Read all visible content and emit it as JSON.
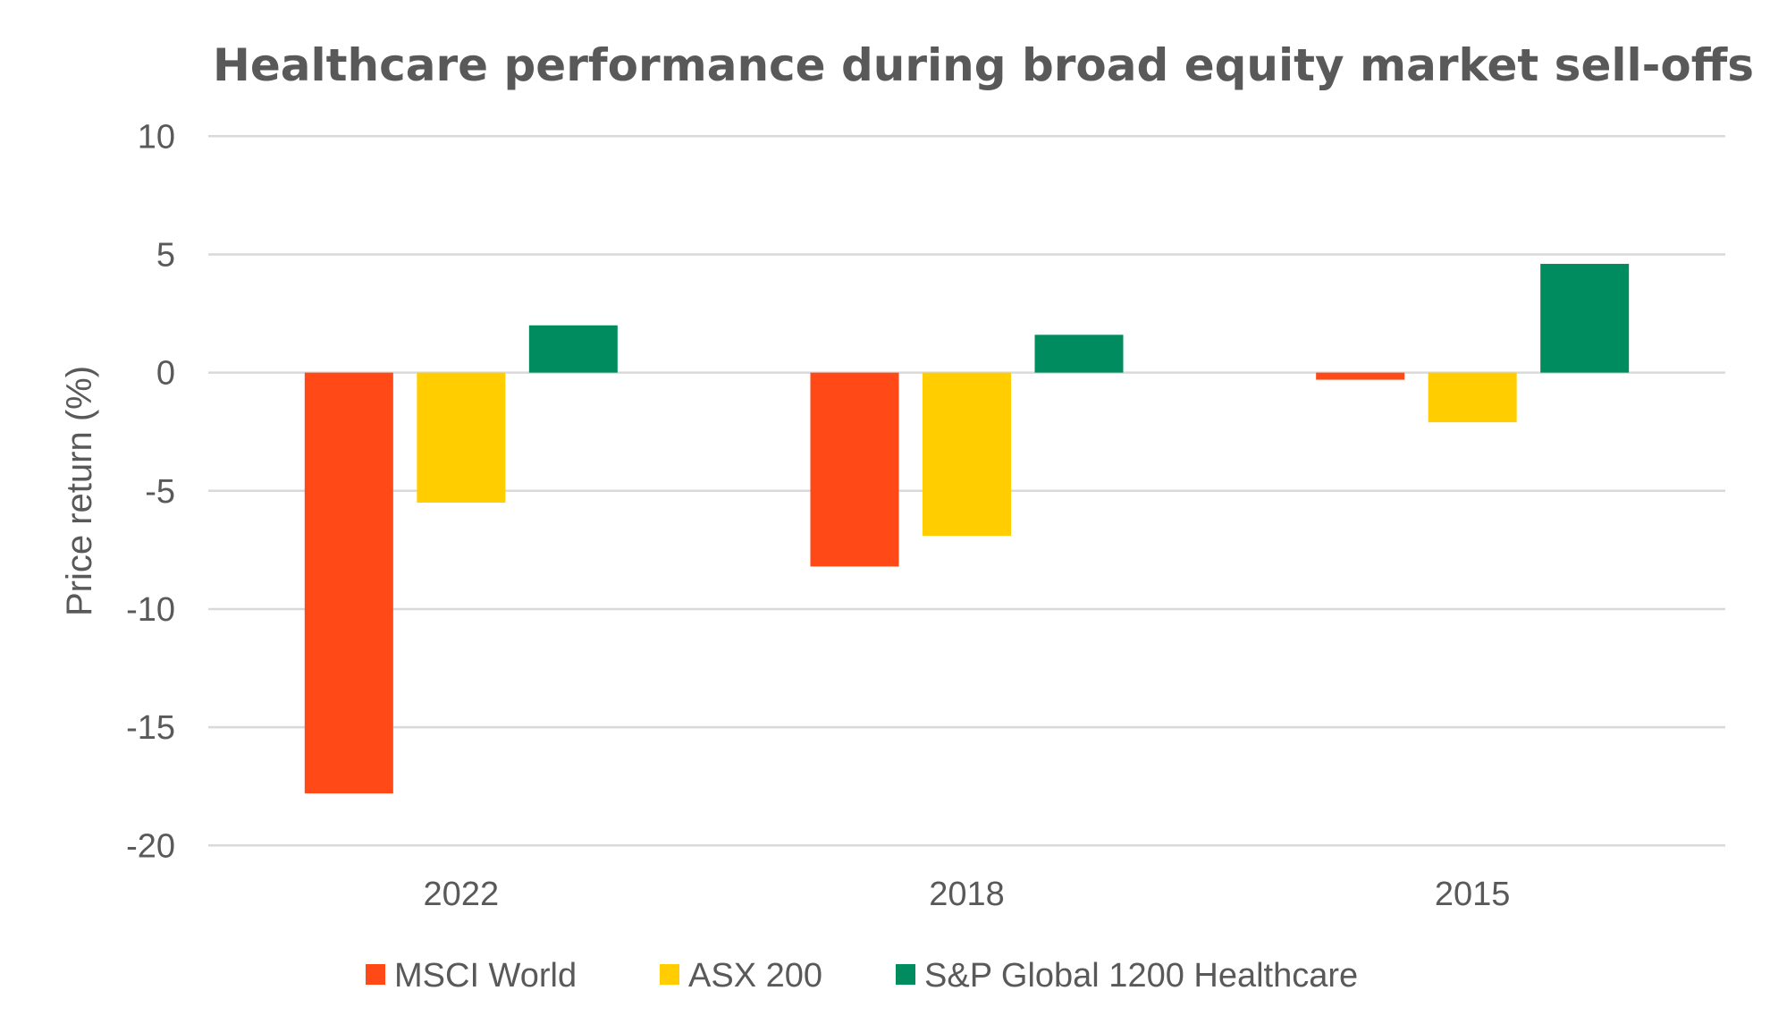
{
  "chart_data": {
    "type": "bar",
    "title": "Healthcare performance during broad equity market sell-offs",
    "xlabel": "",
    "ylabel": "Price return (%)",
    "ylim": [
      -20,
      10
    ],
    "yticks": [
      10,
      5,
      0,
      -5,
      -10,
      -15,
      -20
    ],
    "ytick_labels": [
      "10",
      "5",
      "0",
      "-5",
      "-10",
      "-15",
      "-20"
    ],
    "grid": true,
    "legend_position": "bottom",
    "categories": [
      "2022",
      "2018",
      "2015"
    ],
    "series": [
      {
        "name": "MSCI World",
        "color": "#FF4A17",
        "values": [
          -17.8,
          -8.2,
          -0.3
        ]
      },
      {
        "name": "ASX 200",
        "color": "#FFCD00",
        "values": [
          -5.5,
          -6.9,
          -2.1
        ]
      },
      {
        "name": "S&P Global 1200 Healthcare",
        "color": "#008C5E",
        "values": [
          2.0,
          1.6,
          4.6
        ]
      }
    ]
  },
  "colors": {
    "text": "#595959",
    "gridline": "#D9D9D9",
    "background": "#FFFFFF"
  }
}
